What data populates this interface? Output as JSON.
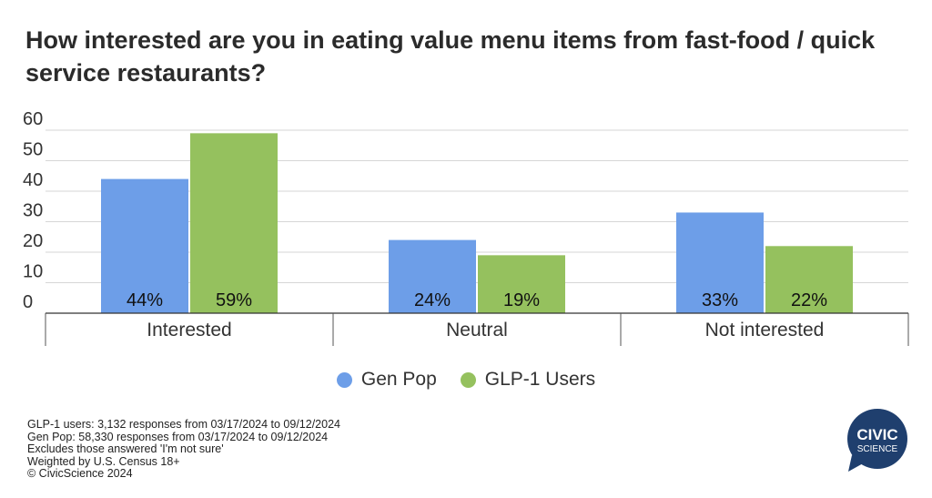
{
  "title": "How interested are you in eating value menu items from fast-food / quick service restaurants?",
  "chart_data": {
    "type": "bar",
    "categories": [
      "Interested",
      "Neutral",
      "Not interested"
    ],
    "series": [
      {
        "name": "Gen Pop",
        "values": [
          44,
          24,
          33
        ],
        "labels": [
          "44%",
          "24%",
          "33%"
        ],
        "color": "#6d9ee8"
      },
      {
        "name": "GLP-1 Users",
        "values": [
          59,
          19,
          22
        ],
        "labels": [
          "59%",
          "19%",
          "22%"
        ],
        "color": "#95c15e"
      }
    ],
    "yticks": [
      0,
      10,
      20,
      30,
      40,
      50,
      60
    ],
    "ylim": [
      0,
      60
    ],
    "grid": true,
    "legend_position": "bottom"
  },
  "footnotes": [
    "GLP-1 users: 3,132 responses from 03/17/2024 to 09/12/2024",
    "Gen Pop: 58,330 responses from 03/17/2024 to 09/12/2024",
    "Excludes those answered 'I'm not sure'",
    "Weighted by U.S. Census 18+",
    "© CivicScience 2024"
  ],
  "logo": {
    "line1": "CIVIC",
    "line2": "SCIENCE",
    "color": "#1f3f6e"
  }
}
